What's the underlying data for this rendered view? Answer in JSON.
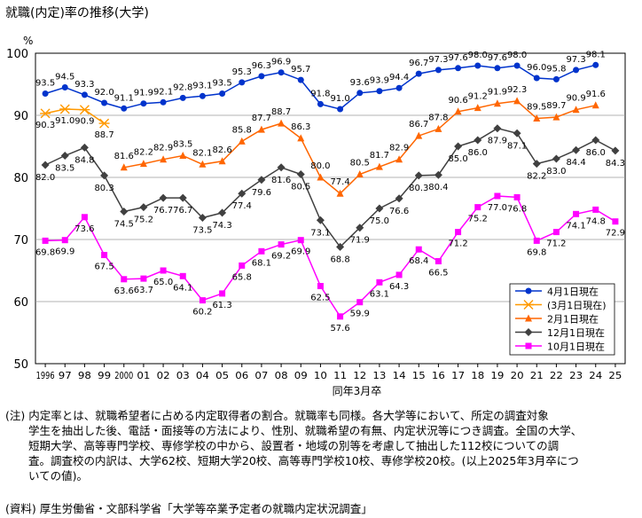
{
  "title": "就職(内定)率の推移(大学)",
  "chart_data": {
    "type": "line",
    "ylabel": "%",
    "xlabel": "同年3月卒",
    "ylim": [
      50,
      100
    ],
    "yticks": [
      50,
      60,
      70,
      80,
      90,
      100
    ],
    "categories": [
      "1996",
      "97",
      "98",
      "99",
      "2000",
      "01",
      "02",
      "03",
      "04",
      "05",
      "06",
      "07",
      "08",
      "09",
      "10",
      "11",
      "12",
      "13",
      "14",
      "15",
      "16",
      "17",
      "18",
      "19",
      "20",
      "21",
      "22",
      "23",
      "24",
      "25"
    ],
    "series": [
      {
        "name": "4月1日現在",
        "color": "#0033cc",
        "marker": "circle",
        "values": [
          93.5,
          94.5,
          93.3,
          92.0,
          91.1,
          91.9,
          92.1,
          92.8,
          93.1,
          93.5,
          95.3,
          96.3,
          96.9,
          95.7,
          91.8,
          91.0,
          93.6,
          93.9,
          94.4,
          96.7,
          97.3,
          97.6,
          98.0,
          97.6,
          98.0,
          96.0,
          95.8,
          97.3,
          98.1,
          null
        ]
      },
      {
        "name": "(3月1日現在)",
        "color": "#ff9900",
        "marker": "star",
        "values": [
          90.3,
          91.0,
          90.9,
          88.7,
          null,
          null,
          null,
          null,
          null,
          null,
          null,
          null,
          null,
          null,
          null,
          null,
          null,
          null,
          null,
          null,
          null,
          null,
          null,
          null,
          null,
          null,
          null,
          null,
          null,
          null
        ]
      },
      {
        "name": "2月1日現在",
        "color": "#ff6600",
        "marker": "triangle",
        "values": [
          null,
          null,
          null,
          null,
          81.6,
          82.2,
          82.9,
          83.5,
          82.1,
          82.6,
          85.8,
          87.7,
          88.7,
          86.3,
          80.0,
          77.4,
          80.5,
          81.7,
          82.9,
          86.7,
          87.8,
          90.6,
          91.2,
          91.9,
          92.3,
          89.5,
          89.7,
          90.9,
          91.6,
          null
        ]
      },
      {
        "name": "12月1日現在",
        "color": "#404040",
        "marker": "diamond",
        "values": [
          82.0,
          83.5,
          84.8,
          80.3,
          74.5,
          75.2,
          76.7,
          76.7,
          73.5,
          74.3,
          77.4,
          79.6,
          81.6,
          80.5,
          73.1,
          68.8,
          71.9,
          75.0,
          76.6,
          80.3,
          80.4,
          85.0,
          86.0,
          87.9,
          87.1,
          82.2,
          83.0,
          84.4,
          86.0,
          84.3
        ]
      },
      {
        "name": "10月1日現在",
        "color": "#ff00ff",
        "marker": "square",
        "values": [
          69.8,
          69.9,
          73.6,
          67.5,
          63.6,
          63.7,
          65.0,
          64.1,
          60.2,
          61.3,
          65.8,
          68.1,
          69.2,
          69.9,
          62.5,
          57.6,
          59.9,
          63.1,
          64.3,
          68.4,
          66.5,
          71.2,
          75.2,
          77.0,
          76.8,
          69.8,
          71.2,
          74.1,
          74.8,
          72.9
        ]
      }
    ],
    "grid": true,
    "legend": "right"
  },
  "notes": {
    "line1": "(注) 内定率とは、就職希望者に占める内定取得者の割合。就職率も同様。各大学等において、所定の調査対象",
    "line2": "学生を抽出した後、電話・面接等の方法により、性別、就職希望の有無、内定状況等につき調査。全国の大学、",
    "line3": "短期大学、高等専門学校、専修学校の中から、設置者・地域の別等を考慮して抽出した112校についての調",
    "line4": "査。調査校の内訳は、大学62校、短期大学20校、高等専門学校10校、専修学校20校。(以上2025年3月卒につ",
    "line5": "いての値)。"
  },
  "source": "(資料) 厚生労働省・文部科学省「大学等卒業予定者の就職内定状況調査」"
}
